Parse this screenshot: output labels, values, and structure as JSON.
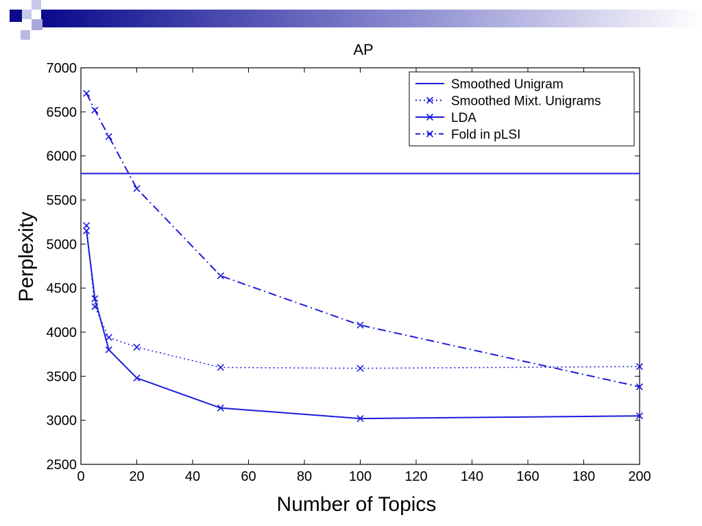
{
  "chart_data": {
    "type": "line",
    "title": "AP",
    "xlabel": "Number of Topics",
    "ylabel": "Perplexity",
    "xlim": [
      0,
      200
    ],
    "ylim": [
      2500,
      7000
    ],
    "xticks": [
      0,
      20,
      40,
      60,
      80,
      100,
      120,
      140,
      160,
      180,
      200
    ],
    "yticks": [
      2500,
      3000,
      3500,
      4000,
      4500,
      5000,
      5500,
      6000,
      6500,
      7000
    ],
    "grid": false,
    "legend_position": "top-right",
    "line_color": "#1a1adb",
    "series": [
      {
        "name": "Smoothed Unigram",
        "style": "solid",
        "marker": "none",
        "x": [
          0,
          200
        ],
        "y": [
          5800,
          5800
        ]
      },
      {
        "name": "Smoothed Mixt. Unigrams",
        "style": "dotted",
        "marker": "x",
        "x": [
          2,
          5,
          10,
          20,
          50,
          100,
          200
        ],
        "y": [
          5210,
          4290,
          3940,
          3830,
          3600,
          3590,
          3610
        ]
      },
      {
        "name": "LDA",
        "style": "solid",
        "marker": "x",
        "x": [
          2,
          5,
          10,
          20,
          50,
          100,
          200
        ],
        "y": [
          5150,
          4380,
          3800,
          3480,
          3140,
          3020,
          3050
        ]
      },
      {
        "name": "Fold in pLSI",
        "style": "dashdot",
        "marker": "x",
        "x": [
          2,
          5,
          10,
          20,
          50,
          100,
          200
        ],
        "y": [
          6710,
          6520,
          6220,
          5630,
          4640,
          4080,
          3380
        ]
      }
    ]
  }
}
